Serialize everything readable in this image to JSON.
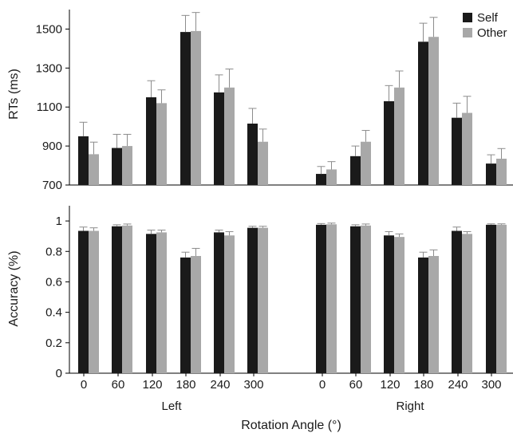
{
  "colors": {
    "self": "#1a1a1a",
    "other": "#a8a8a8",
    "axis": "#000000",
    "error_bar": "#8c8c8c"
  },
  "legend": [
    {
      "name": "Self",
      "color": "#1a1a1a"
    },
    {
      "name": "Other",
      "color": "#a8a8a8"
    }
  ],
  "group_labels": [
    "Left",
    "Right"
  ],
  "x_title": "Rotation Angle (°)",
  "chart_data": [
    {
      "type": "bar",
      "ylabel": "RTs (ms)",
      "ylim": [
        700,
        1600
      ],
      "yticks": [
        "700",
        "900",
        "1100",
        "1300",
        "1500"
      ],
      "categories": [
        "0",
        "60",
        "120",
        "180",
        "240",
        "300",
        "0",
        "60",
        "120",
        "180",
        "240",
        "300"
      ],
      "groups": [
        "Left",
        "Left",
        "Left",
        "Left",
        "Left",
        "Left",
        "Right",
        "Right",
        "Right",
        "Right",
        "Right",
        "Right"
      ],
      "series": [
        {
          "name": "Self",
          "values": [
            950,
            890,
            1150,
            1485,
            1175,
            1015,
            757,
            848,
            1130,
            1435,
            1045,
            810
          ],
          "errors": [
            72,
            70,
            85,
            85,
            90,
            78,
            38,
            52,
            80,
            95,
            75,
            45
          ]
        },
        {
          "name": "Other",
          "values": [
            858,
            900,
            1120,
            1490,
            1200,
            922,
            780,
            922,
            1200,
            1460,
            1070,
            835
          ],
          "errors": [
            62,
            60,
            68,
            95,
            95,
            65,
            40,
            58,
            85,
            100,
            85,
            52
          ]
        }
      ],
      "legend_position": "top-right",
      "grid": false
    },
    {
      "type": "bar",
      "ylabel": "Accuracy (%)",
      "ylim": [
        0,
        1.1
      ],
      "yticks": [
        "0",
        "0.2",
        "0.4",
        "0.6",
        "0.8",
        "1"
      ],
      "categories": [
        "0",
        "60",
        "120",
        "180",
        "240",
        "300",
        "0",
        "60",
        "120",
        "180",
        "240",
        "300"
      ],
      "groups": [
        "Left",
        "Left",
        "Left",
        "Left",
        "Left",
        "Left",
        "Right",
        "Right",
        "Right",
        "Right",
        "Right",
        "Right"
      ],
      "series": [
        {
          "name": "Self",
          "values": [
            0.935,
            0.965,
            0.915,
            0.76,
            0.925,
            0.955,
            0.975,
            0.965,
            0.905,
            0.76,
            0.935,
            0.975
          ],
          "errors": [
            0.025,
            0.01,
            0.025,
            0.035,
            0.015,
            0.01,
            0.008,
            0.01,
            0.025,
            0.035,
            0.025,
            0.006
          ]
        },
        {
          "name": "Other",
          "values": [
            0.935,
            0.97,
            0.925,
            0.77,
            0.905,
            0.955,
            0.978,
            0.97,
            0.895,
            0.77,
            0.915,
            0.975
          ],
          "errors": [
            0.02,
            0.01,
            0.015,
            0.05,
            0.025,
            0.01,
            0.008,
            0.01,
            0.02,
            0.04,
            0.015,
            0.006
          ]
        }
      ],
      "grid": false
    }
  ]
}
